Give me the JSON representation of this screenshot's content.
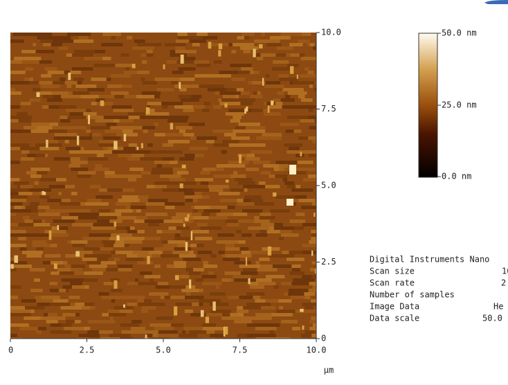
{
  "image": {
    "y_axis": {
      "ticks": [
        "10.0",
        "7.5",
        "5.0",
        "2.5",
        "0"
      ]
    },
    "x_axis": {
      "ticks": [
        "0",
        "2.5",
        "5.0",
        "7.5",
        "10.0"
      ],
      "unit": "µm"
    },
    "color_scale": {
      "labels": [
        "50.0 nm",
        "25.0 nm",
        "0.0 nm"
      ]
    },
    "info": {
      "header": "Digital Instruments Nano",
      "rows": [
        [
          "Scan size",
          "10"
        ],
        [
          "Scan rate",
          "2"
        ],
        [
          "Number of samples",
          ""
        ],
        [
          "Image Data",
          "He"
        ],
        [
          "Data scale",
          "50.0"
        ]
      ]
    }
  }
}
